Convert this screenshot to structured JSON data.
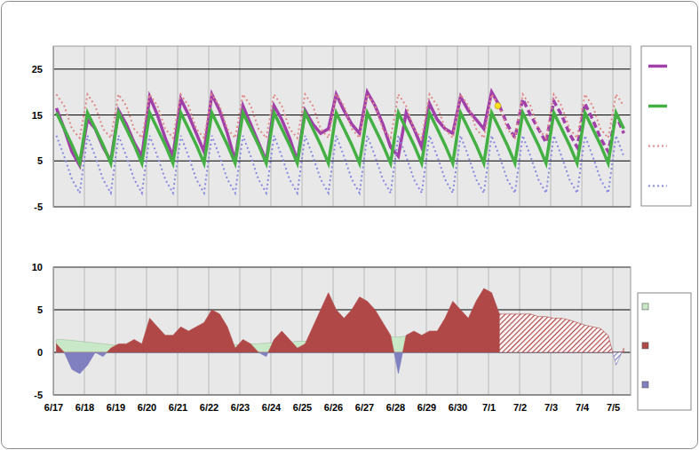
{
  "chart_data": [
    {
      "type": "line",
      "x": [
        0.1,
        0.35,
        0.6,
        0.85,
        1.1,
        1.35,
        1.6,
        1.85,
        2.1,
        2.35,
        2.6,
        2.85,
        3.1,
        3.35,
        3.6,
        3.85,
        4.1,
        4.35,
        4.6,
        4.85,
        5.1,
        5.35,
        5.6,
        5.85,
        6.1,
        6.35,
        6.6,
        6.85,
        7.1,
        7.35,
        7.6,
        7.85,
        8.1,
        8.35,
        8.6,
        8.85,
        9.1,
        9.35,
        9.6,
        9.85,
        10.1,
        10.35,
        10.6,
        10.85,
        11.1,
        11.35,
        11.6,
        11.85,
        12.1,
        12.35,
        12.6,
        12.85,
        13.1,
        13.35,
        13.6,
        13.85,
        14.1,
        14.35,
        14.6,
        14.85,
        15.1,
        15.35,
        15.6,
        15.85,
        16.1,
        16.35,
        16.6,
        16.85,
        17.1,
        17.35,
        17.6,
        17.85,
        18.1,
        18.35
      ],
      "xlim": [
        0,
        18.57
      ],
      "xticks": [
        0,
        1,
        2,
        3,
        4,
        5,
        6,
        7,
        8,
        9,
        10,
        11,
        12,
        13,
        14,
        15,
        16,
        17,
        18
      ],
      "ylim": [
        -5,
        30
      ],
      "yticks": [
        -5,
        5,
        15,
        25
      ],
      "grid": true,
      "legend": "right",
      "tick_labels": "y",
      "series": [
        {
          "color": "#a040a8",
          "line_style": "solid",
          "values": [
            16.5,
            12,
            7,
            4,
            14,
            12,
            8,
            5,
            16,
            13,
            9,
            6,
            19,
            15,
            10,
            6,
            18.5,
            15,
            11,
            7,
            19.5,
            16,
            11,
            5,
            17,
            13,
            9,
            5,
            17,
            14,
            10,
            5,
            16,
            13,
            11,
            12,
            19.5,
            16,
            13,
            11,
            20,
            17,
            13,
            8,
            6,
            15.5,
            12,
            8,
            17.5,
            14,
            12,
            11,
            19,
            16,
            14,
            12,
            20,
            17,
            null,
            null,
            null,
            null,
            null,
            null,
            null,
            null,
            null,
            null,
            null,
            null,
            null,
            null,
            null,
            null
          ]
        },
        {
          "color": "#a040a8",
          "line_style": "dashed",
          "values": [
            null,
            null,
            null,
            null,
            null,
            null,
            null,
            null,
            null,
            null,
            null,
            null,
            null,
            null,
            null,
            null,
            null,
            null,
            null,
            null,
            null,
            null,
            null,
            null,
            null,
            null,
            null,
            null,
            null,
            null,
            null,
            null,
            null,
            null,
            null,
            null,
            null,
            null,
            null,
            null,
            null,
            null,
            null,
            null,
            null,
            null,
            null,
            null,
            null,
            null,
            null,
            null,
            null,
            null,
            null,
            null,
            null,
            17,
            13,
            10,
            18.5,
            15,
            12,
            9,
            18,
            15,
            11,
            8,
            17.5,
            14,
            10,
            7,
            15,
            11
          ]
        },
        {
          "color": "#44b044",
          "line_style": "solid",
          "values": [
            15.5,
            12,
            8.5,
            4.5,
            15.5,
            12,
            8.5,
            4.5,
            15.5,
            12,
            8.5,
            4.5,
            15.5,
            12,
            8.5,
            4.5,
            15.5,
            12,
            8.5,
            4.5,
            15.5,
            12,
            8.5,
            4.5,
            15.5,
            12,
            8.5,
            4.5,
            15.5,
            12,
            8.5,
            4.5,
            15.5,
            12,
            8.5,
            4.5,
            15.5,
            12,
            8.5,
            4.5,
            15.5,
            12,
            8.5,
            4.5,
            15.5,
            12,
            8.5,
            4.5,
            15.5,
            12,
            8.5,
            4.5,
            15.5,
            12,
            8.5,
            4.5,
            15.5,
            12,
            8.5,
            4.5,
            15.5,
            12,
            8.5,
            4.5,
            15.5,
            12,
            8.5,
            4.5,
            15.5,
            12,
            8.5,
            4.5,
            15.5,
            12
          ]
        },
        {
          "color": "#e08888",
          "line_style": "dotted",
          "values": [
            19.5,
            17,
            12,
            10,
            19.5,
            17,
            12,
            10,
            19.5,
            17,
            12,
            10,
            19.5,
            17,
            12,
            10,
            19.5,
            17,
            12,
            10,
            19.5,
            17,
            12,
            10,
            19.5,
            17,
            12,
            10,
            19.5,
            17,
            12,
            10,
            19.5,
            17,
            12,
            10,
            19.5,
            17,
            12,
            10,
            19.5,
            17,
            12,
            10,
            19.5,
            17,
            12,
            10,
            19.5,
            17,
            12,
            10,
            19.5,
            17,
            12,
            10,
            19.5,
            17,
            12,
            10,
            19.5,
            17,
            12,
            10,
            19.5,
            17,
            12,
            10,
            19.5,
            17,
            12,
            10,
            19.5,
            17
          ]
        },
        {
          "color": "#8888e0",
          "line_style": "dotted",
          "values": [
            10.5,
            6,
            1,
            -2,
            10.5,
            6,
            1,
            -2,
            10.5,
            6,
            1,
            -2,
            10.5,
            6,
            1,
            -2,
            10.5,
            6,
            1,
            -2,
            10.5,
            6,
            1,
            -2,
            10.5,
            6,
            1,
            -2,
            10.5,
            6,
            1,
            -2,
            10.5,
            6,
            1,
            -2,
            10.5,
            6,
            1,
            -2,
            10.5,
            6,
            1,
            -2,
            10.5,
            6,
            1,
            -2,
            10.5,
            6,
            1,
            -2,
            10.5,
            6,
            1,
            -2,
            10.5,
            6,
            1,
            -2,
            10.5,
            6,
            1,
            -2,
            10.5,
            6,
            1,
            -2,
            10.5,
            6,
            1,
            -2,
            10.5,
            6
          ]
        },
        {
          "type": "scatter",
          "marker": "circle",
          "color": "#ffe020",
          "x": [
            14.3
          ],
          "values": [
            17
          ]
        }
      ]
    },
    {
      "type": "area",
      "x": [
        0.1,
        0.35,
        0.6,
        0.85,
        1.1,
        1.35,
        1.6,
        1.85,
        2.1,
        2.35,
        2.6,
        2.85,
        3.1,
        3.35,
        3.6,
        3.85,
        4.1,
        4.35,
        4.6,
        4.85,
        5.1,
        5.35,
        5.6,
        5.85,
        6.1,
        6.35,
        6.6,
        6.85,
        7.1,
        7.35,
        7.6,
        7.85,
        8.1,
        8.35,
        8.6,
        8.85,
        9.1,
        9.35,
        9.6,
        9.85,
        10.1,
        10.35,
        10.6,
        10.85,
        11.1,
        11.35,
        11.6,
        11.85,
        12.1,
        12.35,
        12.6,
        12.85,
        13.1,
        13.35,
        13.6,
        13.85,
        14.1,
        14.35,
        14.6,
        14.85,
        15.1,
        15.35,
        15.6,
        15.85,
        16.1,
        16.35,
        16.6,
        16.85,
        17.1,
        17.35,
        17.6,
        17.85,
        18.1,
        18.35
      ],
      "xlim": [
        0,
        18.57
      ],
      "xticks": [
        {
          "value": 0,
          "label": "6/17"
        },
        {
          "value": 1,
          "label": "6/18"
        },
        {
          "value": 2,
          "label": "6/19"
        },
        {
          "value": 3,
          "label": "6/20"
        },
        {
          "value": 4,
          "label": "6/21"
        },
        {
          "value": 5,
          "label": "6/22"
        },
        {
          "value": 6,
          "label": "6/23"
        },
        {
          "value": 7,
          "label": "6/24"
        },
        {
          "value": 8,
          "label": "6/25"
        },
        {
          "value": 9,
          "label": "6/26"
        },
        {
          "value": 10,
          "label": "6/27"
        },
        {
          "value": 11,
          "label": "6/28"
        },
        {
          "value": 12,
          "label": "6/29"
        },
        {
          "value": 13,
          "label": "6/30"
        },
        {
          "value": 14,
          "label": "7/1"
        },
        {
          "value": 15,
          "label": "7/2"
        },
        {
          "value": 16,
          "label": "7/3"
        },
        {
          "value": 17,
          "label": "7/4"
        },
        {
          "value": 18,
          "label": "7/5"
        }
      ],
      "ylim": [
        -5,
        10
      ],
      "yticks": [
        -5,
        0,
        5,
        10
      ],
      "grid": true,
      "legend": "right",
      "series": [
        {
          "color": "#c8e8c8",
          "values": [
            1.5,
            1.5,
            1.4,
            1.3,
            1.2,
            1.1,
            1.0,
            0.9,
            0.8,
            0.7,
            0.7,
            0.6,
            0.6,
            0.6,
            0.6,
            0.6,
            0.7,
            0.7,
            0.7,
            0.7,
            0.8,
            0.8,
            0.8,
            0.9,
            0.9,
            1.0,
            1.0,
            1.1,
            1.1,
            1.2,
            1.2,
            1.3,
            1.3,
            1.4,
            1.4,
            1.5,
            1.5,
            1.6,
            1.6,
            1.7,
            1.7,
            1.7,
            1.8,
            1.8,
            1.8,
            1.9,
            1.9,
            1.9,
            2.0,
            2.0,
            2.0,
            2.1,
            2.1,
            2.1,
            2.2,
            2.2,
            2.2,
            2.3,
            null,
            null,
            null,
            null,
            null,
            null,
            null,
            null,
            null,
            null,
            null,
            null,
            null,
            null,
            null,
            null
          ]
        },
        {
          "colors": [
            "#b04848",
            "#8080c0"
          ],
          "line_style": "solid",
          "values": [
            1,
            0,
            -2,
            -2.5,
            -1.5,
            0,
            -0.5,
            0.5,
            1,
            1,
            1.5,
            1,
            4,
            3,
            2,
            2,
            3,
            2.5,
            3,
            3.5,
            5,
            4.5,
            3,
            0.5,
            1.5,
            1,
            0,
            -0.5,
            1.5,
            2.5,
            1.5,
            0.5,
            1,
            3,
            5,
            7,
            5,
            4,
            5,
            6.5,
            6,
            5,
            3.5,
            2,
            -2.5,
            2,
            2.5,
            2,
            2.5,
            2.5,
            4,
            6,
            5,
            4,
            6,
            7.5,
            7,
            4.5,
            null,
            null,
            null,
            null,
            null,
            null,
            null,
            null,
            null,
            null,
            null,
            null,
            null,
            null,
            null,
            null
          ]
        },
        {
          "colors": [
            "#b04848",
            "#8080c0"
          ],
          "line_style": "hatched",
          "values": [
            null,
            null,
            null,
            null,
            null,
            null,
            null,
            null,
            null,
            null,
            null,
            null,
            null,
            null,
            null,
            null,
            null,
            null,
            null,
            null,
            null,
            null,
            null,
            null,
            null,
            null,
            null,
            null,
            null,
            null,
            null,
            null,
            null,
            null,
            null,
            null,
            null,
            null,
            null,
            null,
            null,
            null,
            null,
            null,
            null,
            null,
            null,
            null,
            null,
            null,
            null,
            null,
            null,
            null,
            null,
            null,
            null,
            4.5,
            4.5,
            4.5,
            4.5,
            4.5,
            4.2,
            4.2,
            4,
            4,
            3.8,
            3.5,
            3.2,
            3,
            2.8,
            2,
            -1.5,
            0.5
          ]
        }
      ]
    }
  ]
}
